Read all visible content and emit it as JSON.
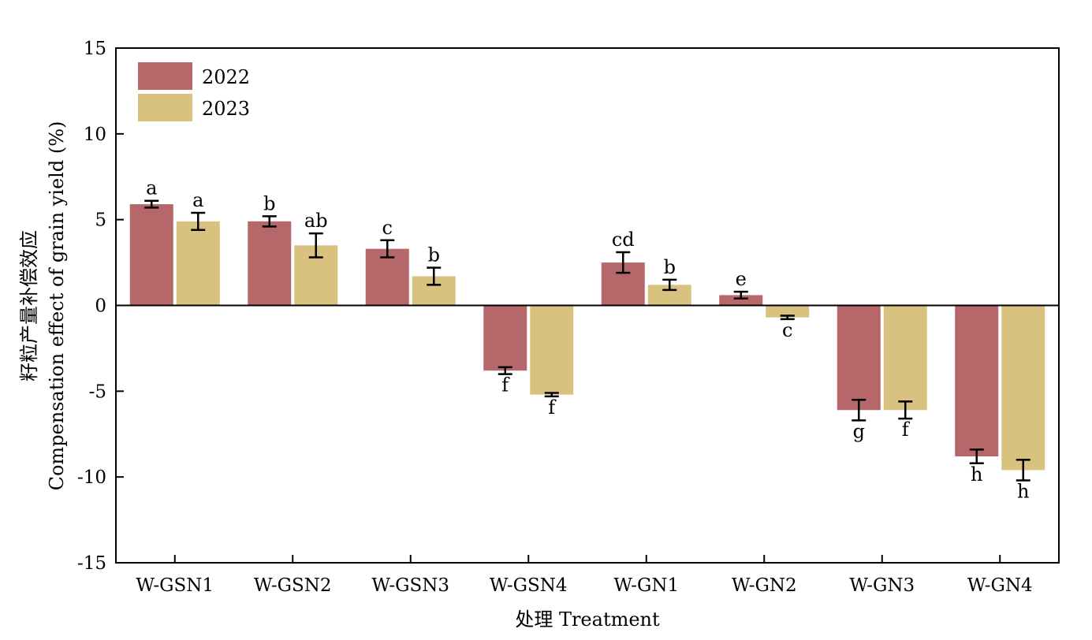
{
  "chart_data": {
    "type": "bar",
    "xlabel": "处理 Treatment",
    "ylabel_line1": "籽粒产量补偿效应",
    "ylabel_line2": "Compensation effect of grain yield (%)",
    "ylim": [
      -15,
      15
    ],
    "yticks": [
      -15,
      -10,
      -5,
      0,
      5,
      10,
      15
    ],
    "grid": false,
    "legend_position": "top-left",
    "categories": [
      "W-GSN1",
      "W-GSN2",
      "W-GSN3",
      "W-GSN4",
      "W-GN1",
      "W-GN2",
      "W-GN3",
      "W-GN4"
    ],
    "series": [
      {
        "name": "2022",
        "color": "#b5676a",
        "values": [
          5.9,
          4.9,
          3.3,
          -3.8,
          2.5,
          0.6,
          -6.1,
          -8.8
        ],
        "errors": [
          0.2,
          0.3,
          0.5,
          0.2,
          0.6,
          0.2,
          0.6,
          0.4
        ],
        "letters": [
          "a",
          "b",
          "c",
          "f",
          "cd",
          "e",
          "g",
          "h"
        ]
      },
      {
        "name": "2023",
        "color": "#d9c17f",
        "values": [
          4.9,
          3.5,
          1.7,
          -5.2,
          1.2,
          -0.7,
          -6.1,
          -9.6
        ],
        "errors": [
          0.5,
          0.7,
          0.5,
          0.1,
          0.3,
          0.1,
          0.5,
          0.6
        ],
        "letters": [
          "a",
          "ab",
          "b",
          "f",
          "b",
          "c",
          "f",
          "h"
        ]
      }
    ]
  }
}
